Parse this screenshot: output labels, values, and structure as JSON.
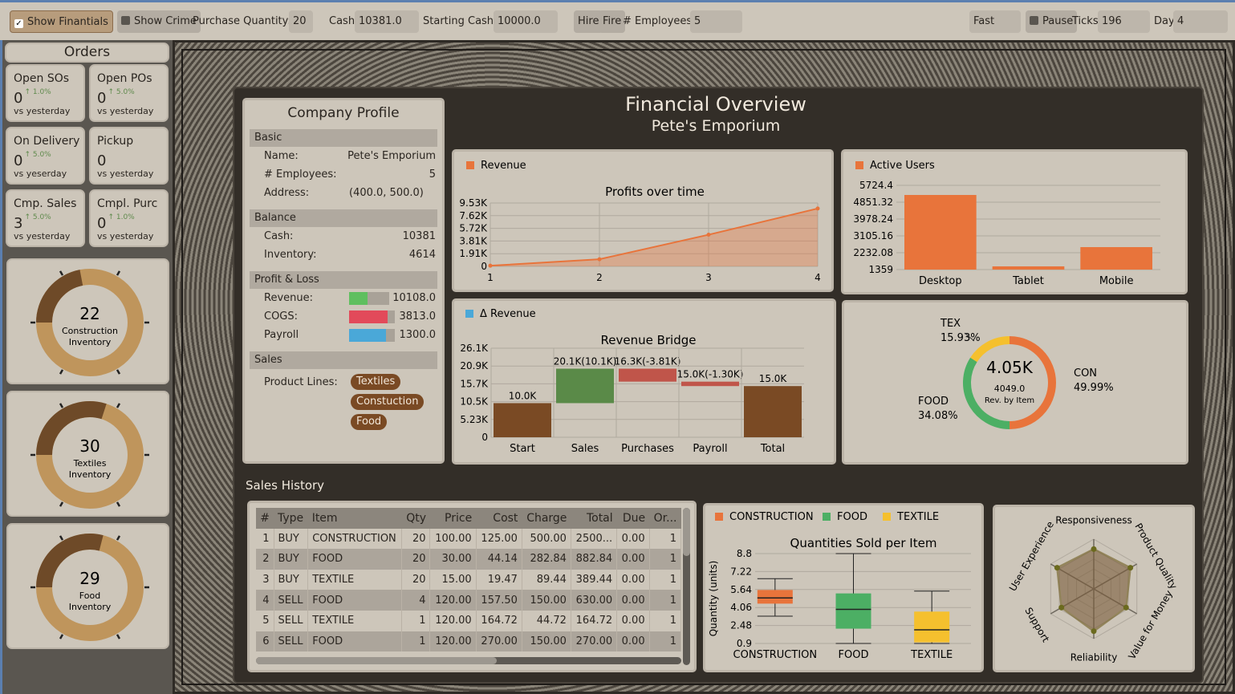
{
  "toolbar": {
    "show_financials": "Show Finantials",
    "show_crime": "Show Crime",
    "purchase_qty_label": "Purchase Quantity:",
    "purchase_qty": "20",
    "cash_label": "Cash",
    "cash": "10381.0",
    "starting_cash_label": "Starting Cash:",
    "starting_cash": "10000.0",
    "hire": "Hire",
    "fire": "Fire",
    "employees_label": "# Employees:",
    "employees": "5",
    "speed": "Fast",
    "pause": "Pause",
    "ticks_label": "Ticks",
    "ticks": "196",
    "day_label": "Day",
    "day": "4"
  },
  "orders": {
    "title": "Orders",
    "cards": [
      {
        "title": "Open SOs",
        "value": "0",
        "pct": "↑ 1.0%",
        "sub": "vs yesterday"
      },
      {
        "title": "Open POs",
        "value": "0",
        "pct": "↑ 5.0%",
        "sub": "vs yesterday"
      },
      {
        "title": "On Delivery",
        "value": "0",
        "pct": "↑ 5.0%",
        "sub": "vs yeserday"
      },
      {
        "title": "Pickup",
        "value": "0",
        "pct": "",
        "sub": "vs yesterday"
      },
      {
        "title": "Cmp. Sales",
        "value": "3",
        "pct": "↑ 5.0%",
        "sub": "vs yesterday"
      },
      {
        "title": "Cmpl. Purc",
        "value": "0",
        "pct": "↑ 1.0%",
        "sub": "vs yesterday"
      }
    ]
  },
  "gauges": [
    {
      "value": "22",
      "label1": "Construction",
      "label2": "Inventory",
      "fraction": 0.22
    },
    {
      "value": "30",
      "label1": "Textiles",
      "label2": "Inventory",
      "fraction": 0.3
    },
    {
      "value": "29",
      "label1": "Food",
      "label2": "Inventory",
      "fraction": 0.29
    }
  ],
  "overview": {
    "title": "Financial Overview",
    "subtitle": "Pete's Emporium"
  },
  "profile": {
    "title": "Company Profile",
    "basic": "Basic",
    "name_label": "Name:",
    "name": "Pete's Emporium",
    "emp_label": "# Employees:",
    "emp": "5",
    "addr_label": "Address:",
    "addr": "(400.0, 500.0)",
    "balance": "Balance",
    "cash_label": "Cash:",
    "cash": "10381",
    "inv_label": "Inventory:",
    "inv": "4614",
    "pl": "Profit & Loss",
    "rev_label": "Revenue:",
    "rev": "10108.0",
    "rev_frac": 0.45,
    "cogs_label": "COGS:",
    "cogs": "3813.0",
    "cogs_frac": 0.85,
    "payroll_label": "Payroll",
    "payroll": "1300.0",
    "payroll_frac": 0.8,
    "sales": "Sales",
    "lines_label": "Product Lines:",
    "lines": [
      "Textiles",
      "Constuction",
      "Food"
    ]
  },
  "colors": {
    "orange": "#e8743b",
    "green": "#4caf64",
    "yellow": "#f5c02e",
    "blue": "#4aa8d8",
    "red": "#e24a5a",
    "brown": "#7a4a24",
    "gauge_light": "#bf955c",
    "gauge_dark": "#6e4a28"
  },
  "chart_data": [
    {
      "type": "area",
      "title": "Profits over time",
      "legend": "Revenue",
      "x": [
        1,
        2,
        3,
        4
      ],
      "y": [
        100,
        1070,
        4760,
        8700
      ],
      "yticks": [
        "0",
        "1.91K",
        "3.81K",
        "5.72K",
        "7.62K",
        "9.53K"
      ],
      "ylim": [
        0,
        9530
      ]
    },
    {
      "type": "bar",
      "legend": "Active Users",
      "categories": [
        "Desktop",
        "Tablet",
        "Mobile"
      ],
      "values": [
        5225,
        1525,
        2523
      ],
      "yticks": [
        "1359",
        "2232.08",
        "3105.16",
        "3978.24",
        "4851.32",
        "5724.4"
      ],
      "ylim": [
        1359,
        5724.4
      ]
    },
    {
      "type": "bar",
      "title": "Revenue Bridge",
      "legend": "Δ Revenue",
      "categories": [
        "Start",
        "Sales",
        "Purchases",
        "Payroll",
        "Total"
      ],
      "from": [
        0,
        10.0,
        20.1,
        16.3,
        0
      ],
      "to": [
        10.0,
        20.1,
        16.3,
        15.0,
        15.0
      ],
      "labels": [
        "10.0K",
        "20.1K(10.1K)",
        "16.3K(-3.81K)",
        "15.0K(-1.30K)",
        "15.0K"
      ],
      "yticks": [
        "0",
        "5.23K",
        "10.5K",
        "15.7K",
        "20.9K",
        "26.1K"
      ],
      "ylim": [
        0,
        26.1
      ]
    },
    {
      "type": "pie",
      "center": "4.05K",
      "center_sub1": "4049.0",
      "center_sub2": "Rev. by Item",
      "slices": [
        {
          "name": "CON",
          "pct": "49.99%",
          "value": 49.99
        },
        {
          "name": "FOOD",
          "pct": "34.08%",
          "value": 34.08
        },
        {
          "name": "TEX",
          "pct": "15.93%",
          "value": 15.93
        }
      ]
    },
    {
      "type": "box",
      "title": "Quantities Sold per Item",
      "ylabel": "Quantity (units)",
      "legend": [
        "CONSTRUCTION",
        "FOOD",
        "TEXTILE"
      ],
      "categories": [
        "CONSTRUCTION",
        "FOOD",
        "TEXTILE"
      ],
      "boxes": [
        {
          "min": 3.3,
          "q1": 4.4,
          "median": 4.9,
          "q3": 5.6,
          "max": 6.6
        },
        {
          "min": 0.9,
          "q1": 2.2,
          "median": 3.9,
          "q3": 5.3,
          "max": 8.8
        },
        {
          "min": 0.9,
          "q1": 1.0,
          "median": 2.1,
          "q3": 3.7,
          "max": 5.5
        }
      ],
      "yticks": [
        "0.9",
        "2.48",
        "4.06",
        "5.64",
        "7.22",
        "8.8"
      ],
      "ylim": [
        0.9,
        8.8
      ]
    },
    {
      "type": "radar",
      "axes": [
        "Responsiveness",
        "Product Quality",
        "Value for Money",
        "Reliability",
        "Support",
        "User Experience"
      ],
      "values": [
        0.8,
        0.85,
        0.75,
        0.85,
        0.75,
        0.85
      ]
    }
  ],
  "sales_history": {
    "title": "Sales History",
    "columns": [
      "#",
      "Type",
      "Item",
      "Qty",
      "Price",
      "Cost",
      "Charge",
      "Total",
      "Due",
      "Or..."
    ],
    "rows": [
      [
        "1",
        "BUY",
        "CONSTRUCTION",
        "20",
        "100.00",
        "125.00",
        "500.00",
        "2500...",
        "0.00",
        "1"
      ],
      [
        "2",
        "BUY",
        "FOOD",
        "20",
        "30.00",
        "44.14",
        "282.84",
        "882.84",
        "0.00",
        "1"
      ],
      [
        "3",
        "BUY",
        "TEXTILE",
        "20",
        "15.00",
        "19.47",
        "89.44",
        "389.44",
        "0.00",
        "1"
      ],
      [
        "4",
        "SELL",
        "FOOD",
        "4",
        "120.00",
        "157.50",
        "150.00",
        "630.00",
        "0.00",
        "1"
      ],
      [
        "5",
        "SELL",
        "TEXTILE",
        "1",
        "120.00",
        "164.72",
        "44.72",
        "164.72",
        "0.00",
        "1"
      ],
      [
        "6",
        "SELL",
        "FOOD",
        "1",
        "120.00",
        "270.00",
        "150.00",
        "270.00",
        "0.00",
        "1"
      ]
    ]
  }
}
